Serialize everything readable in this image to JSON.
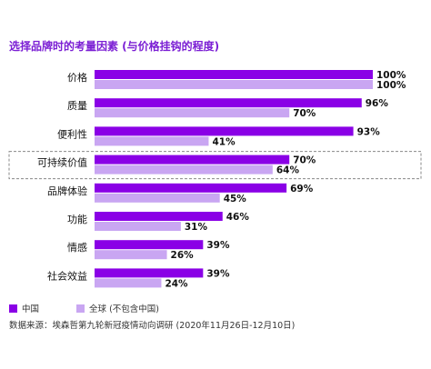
{
  "colors": {
    "china": "#8a00e6",
    "global": "#c9a6f2",
    "highlight_border": "#888888"
  },
  "legend": {
    "china": "中国",
    "global": "全球 (不包含中国)"
  },
  "source": "数据来源：埃森哲第九轮新冠疫情动向调研 (2020年11月26日-12月10日)",
  "chart_data": {
    "type": "bar",
    "orientation": "horizontal",
    "title": "选择品牌时的考量因素 (与价格挂钩的程度)",
    "categories": [
      "价格",
      "质量",
      "便利性",
      "可持续价值",
      "品牌体验",
      "功能",
      "情感",
      "社会效益"
    ],
    "series": [
      {
        "name": "中国",
        "values": [
          100,
          96,
          93,
          70,
          69,
          46,
          39,
          39
        ],
        "labels": [
          "100%",
          "96%",
          "93%",
          "70%",
          "69%",
          "46%",
          "39%",
          "39%"
        ]
      },
      {
        "name": "全球 (不包含中国)",
        "values": [
          100,
          70,
          41,
          64,
          45,
          31,
          26,
          24
        ],
        "labels": [
          "100%",
          "70%",
          "41%",
          "64%",
          "45%",
          "31%",
          "26%",
          "24%"
        ]
      }
    ],
    "xlim": [
      0,
      100
    ],
    "highlighted_category": "可持续价值",
    "grid": false,
    "legend_position": "bottom-left"
  }
}
